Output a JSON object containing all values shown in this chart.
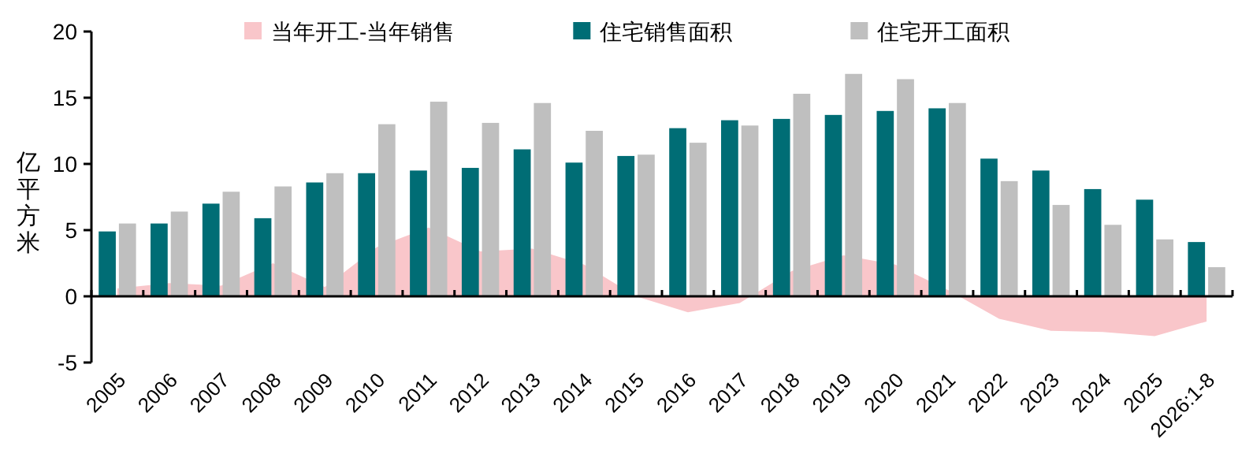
{
  "chart_data": {
    "type": "bar",
    "ylabel": "亿平方米",
    "categories": [
      "2005",
      "2006",
      "2007",
      "2008",
      "2009",
      "2010",
      "2011",
      "2012",
      "2013",
      "2014",
      "2015",
      "2016",
      "2017",
      "2018",
      "2019",
      "2020",
      "2021",
      "2022",
      "2023",
      "2024",
      "2025",
      "2026:1-8"
    ],
    "series": [
      {
        "name": "当年开工-当年销售",
        "type": "area",
        "color": "#f9c6ca",
        "values": [
          0.6,
          1.0,
          0.8,
          2.5,
          0.7,
          3.7,
          5.2,
          3.4,
          3.6,
          2.4,
          0.0,
          -1.2,
          -0.5,
          1.9,
          3.1,
          2.4,
          0.5,
          -1.7,
          -2.6,
          -2.7,
          -3.0,
          -1.9
        ]
      },
      {
        "name": "住宅销售面积",
        "color": "#006d75",
        "values": [
          4.9,
          5.5,
          7.0,
          5.9,
          8.6,
          9.3,
          9.5,
          9.7,
          11.1,
          10.1,
          10.6,
          12.7,
          13.3,
          13.4,
          13.7,
          14.0,
          14.2,
          10.4,
          9.5,
          8.1,
          7.3,
          4.1
        ]
      },
      {
        "name": "住宅开工面积",
        "color": "#bfbfbf",
        "values": [
          5.5,
          6.4,
          7.9,
          8.3,
          9.3,
          13.0,
          14.7,
          13.1,
          14.6,
          12.5,
          10.7,
          11.6,
          12.9,
          15.3,
          16.8,
          16.4,
          14.6,
          8.7,
          6.9,
          5.4,
          4.3,
          2.2
        ]
      }
    ],
    "ylim": [
      -5,
      20
    ],
    "yticks": [
      -5,
      0,
      5,
      10,
      15,
      20
    ],
    "legend": "top"
  }
}
